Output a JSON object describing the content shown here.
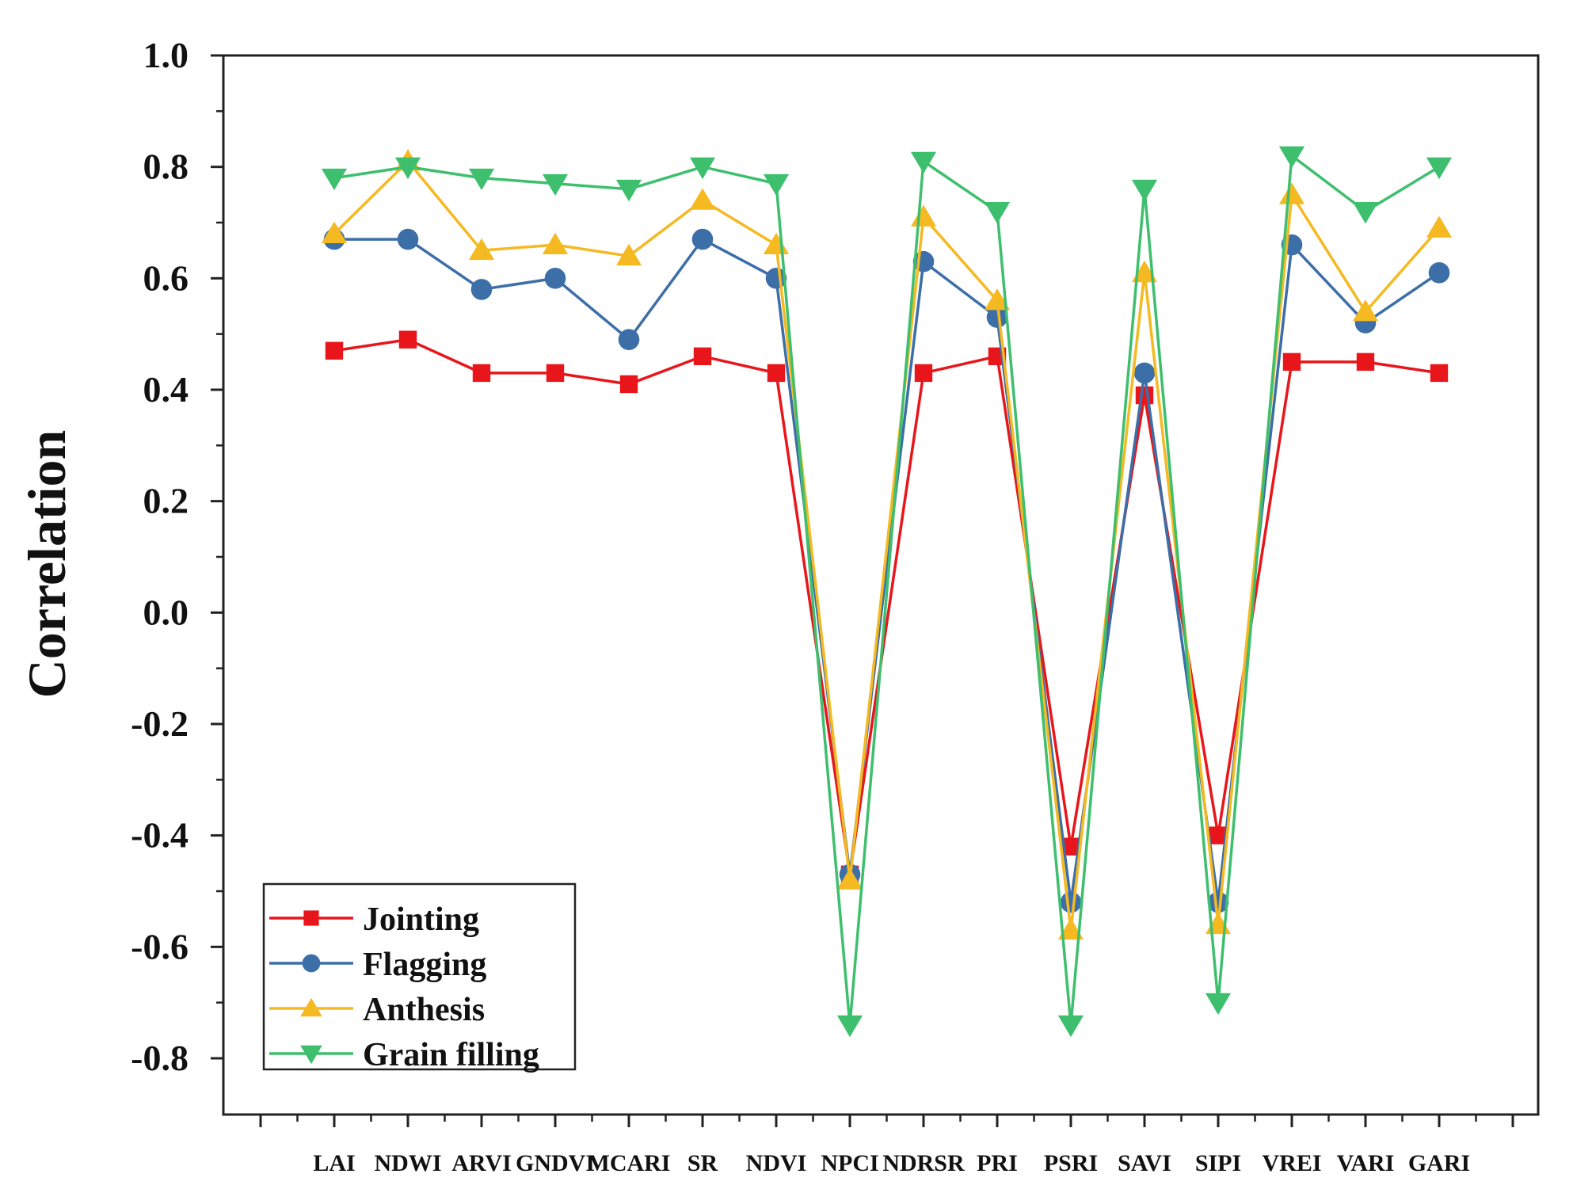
{
  "chart_data": {
    "type": "line",
    "title": "",
    "xlabel": "",
    "ylabel": "Correlation",
    "ylim": [
      -0.9,
      1.0
    ],
    "yticks": [
      "1.0",
      "0.8",
      "0.6",
      "0.4",
      "0.2",
      "0.0",
      "-0.2",
      "-0.4",
      "-0.6",
      "-0.8"
    ],
    "ytick_values": [
      1.0,
      0.8,
      0.6,
      0.4,
      0.2,
      0.0,
      -0.2,
      -0.4,
      -0.6,
      -0.8
    ],
    "categories": [
      "LAI",
      "NDWI",
      "ARVI",
      "GNDVI",
      "MCARI",
      "SR",
      "NDVI",
      "NPCI",
      "NDRSR",
      "PRI",
      "PSRI",
      "SAVI",
      "SIPI",
      "VREI",
      "VARI",
      "GARI"
    ],
    "legend_position": "bottom-left",
    "grid": false,
    "series": [
      {
        "name": "Jointing",
        "color": "#e8161b",
        "marker": "square",
        "values": [
          0.47,
          0.49,
          0.43,
          0.43,
          0.41,
          0.46,
          0.43,
          -0.47,
          0.43,
          0.46,
          -0.42,
          0.39,
          -0.4,
          0.45,
          0.45,
          0.43
        ]
      },
      {
        "name": "Flagging",
        "color": "#3c6ea8",
        "marker": "circle",
        "values": [
          0.67,
          0.67,
          0.58,
          0.6,
          0.49,
          0.67,
          0.6,
          -0.47,
          0.63,
          0.53,
          -0.52,
          0.43,
          -0.52,
          0.66,
          0.52,
          0.61
        ]
      },
      {
        "name": "Anthesis",
        "color": "#f5b921",
        "marker": "triangle-up",
        "values": [
          0.68,
          0.81,
          0.65,
          0.66,
          0.64,
          0.74,
          0.66,
          -0.48,
          0.71,
          0.56,
          -0.57,
          0.61,
          -0.56,
          0.75,
          0.54,
          0.69
        ]
      },
      {
        "name": "Grain filling",
        "color": "#3ebf6e",
        "marker": "triangle-down",
        "values": [
          0.78,
          0.8,
          0.78,
          0.77,
          0.76,
          0.8,
          0.77,
          -0.74,
          0.81,
          0.72,
          -0.74,
          0.76,
          -0.7,
          0.82,
          0.72,
          0.8
        ]
      }
    ]
  }
}
